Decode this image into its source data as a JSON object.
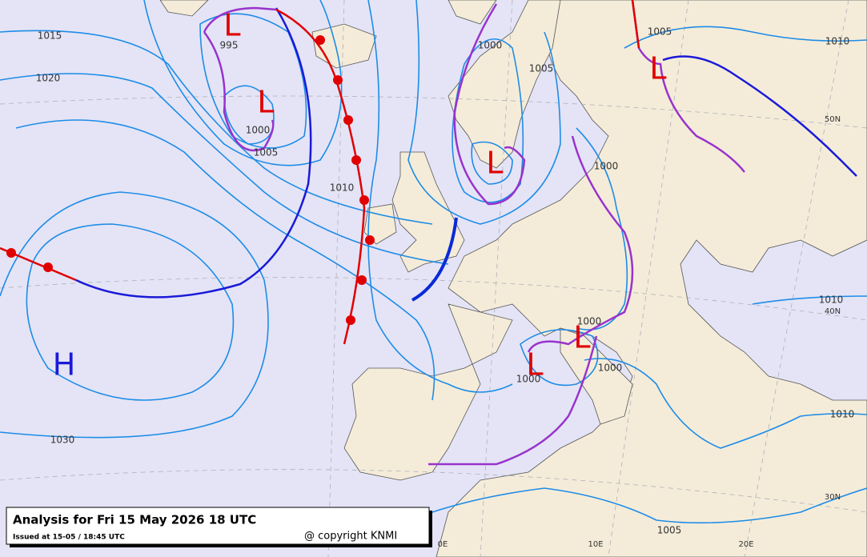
{
  "header": {
    "title": "Analysis for Fri 15 May 2026 18 UTC",
    "issued": "Issued at 15-05 / 18:45 UTC",
    "copyright": "@ copyright KNMI"
  },
  "isobar_labels": [
    "1015",
    "1020",
    "995",
    "1000",
    "1005",
    "1010",
    "1000",
    "1005",
    "1005",
    "1010",
    "1000",
    "1030",
    "1000",
    "1000",
    "1000",
    "1010",
    "1010",
    "1005"
  ],
  "grid_labels": [
    "50N",
    "40N",
    "30N",
    "0E",
    "10E",
    "20E"
  ],
  "pressure_centers": [
    "L",
    "L",
    "L",
    "L",
    "L",
    "L",
    "H"
  ]
}
